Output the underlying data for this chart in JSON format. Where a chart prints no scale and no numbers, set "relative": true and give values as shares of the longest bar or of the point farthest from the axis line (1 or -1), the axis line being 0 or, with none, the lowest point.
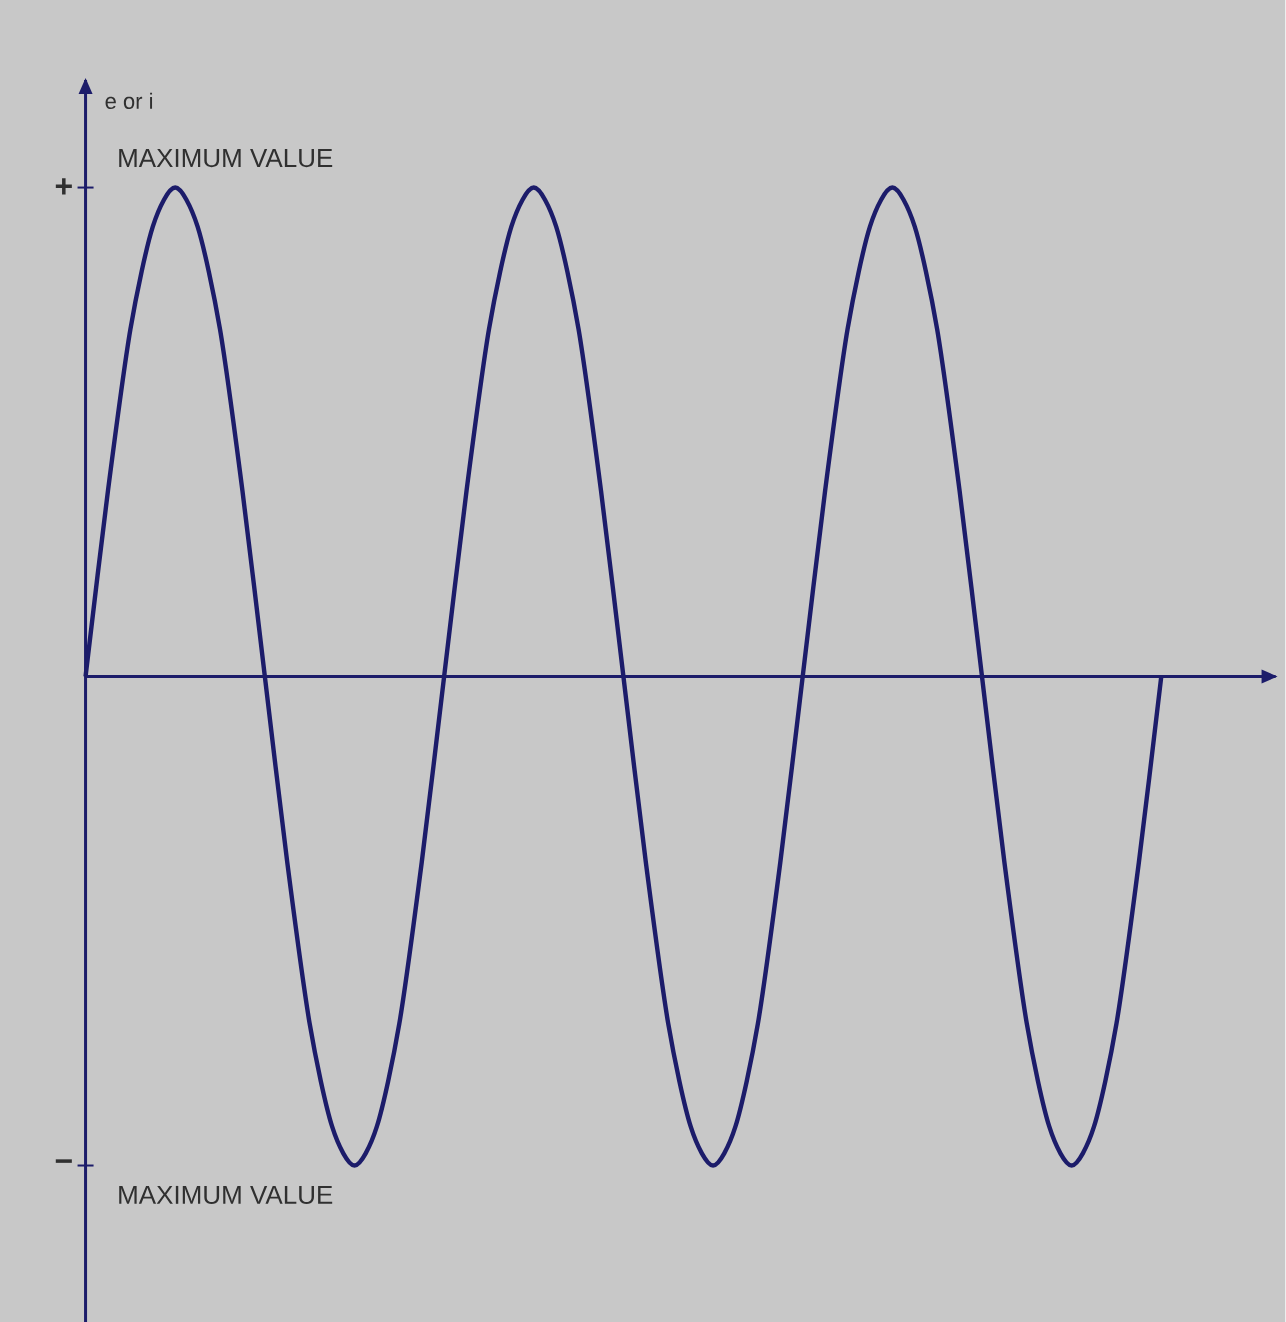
{
  "chart_data": {
    "type": "line",
    "ylabel": "e or i",
    "relative": true,
    "categories": [
      null,
      null,
      null,
      null,
      null,
      null,
      null,
      null,
      null,
      null,
      null,
      null,
      null,
      null,
      null,
      null,
      null,
      null,
      null,
      null,
      null,
      null,
      null,
      null,
      null,
      null,
      null,
      null,
      null,
      null,
      null,
      null,
      null,
      null,
      null,
      null,
      null,
      null,
      null,
      null,
      null,
      null,
      null,
      null,
      null,
      null,
      null,
      null,
      null
    ],
    "series": [
      {
        "color": "#1c1c6a",
        "values": [
          0,
          0.38,
          0.71,
          0.92,
          1,
          0.92,
          0.71,
          0.38,
          0,
          -0.38,
          -0.71,
          -0.92,
          -1,
          -0.92,
          -0.71,
          -0.38,
          0,
          0.38,
          0.71,
          0.92,
          1,
          0.92,
          0.71,
          0.38,
          0,
          -0.38,
          -0.71,
          -0.92,
          -1,
          -0.92,
          -0.71,
          -0.38,
          0,
          0.38,
          0.71,
          0.92,
          1,
          0.92,
          0.71,
          0.38,
          0,
          -0.38,
          -0.71,
          -0.92,
          -1,
          -0.92,
          -0.71,
          -0.38,
          0
        ]
      }
    ],
    "ref_lines": [
      {
        "axis": "y",
        "value": 0,
        "color": "#1c1c6a"
      }
    ],
    "marker": "none",
    "line_style": "solid",
    "annotations": [
      "+",
      "MAXIMUM VALUE",
      "−",
      "MAXIMUM VALUE"
    ]
  }
}
